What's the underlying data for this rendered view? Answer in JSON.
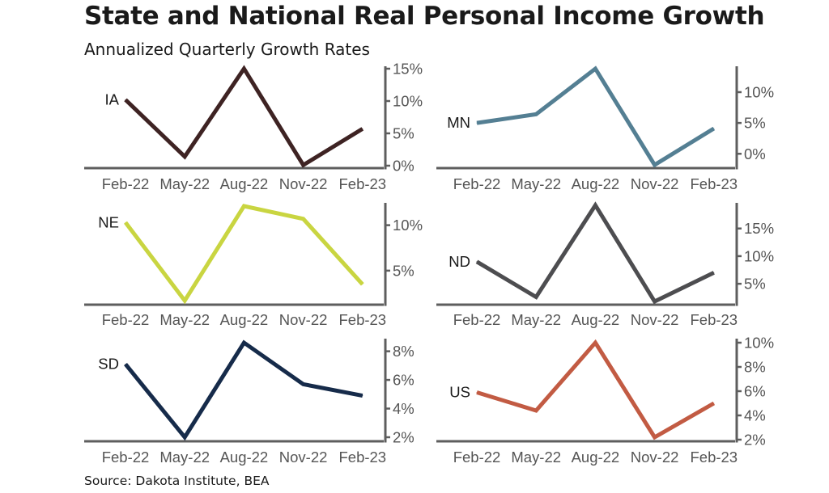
{
  "title": "State and National Real Personal Income Growth",
  "subtitle": "Annualized Quarterly Growth Rates",
  "source": "Source: Dakota Institute, BEA",
  "chart_data": [
    {
      "type": "line",
      "label": "IA",
      "color": "#3e2323",
      "x": [
        "Feb-22",
        "May-22",
        "Aug-22",
        "Nov-22",
        "Feb-23"
      ],
      "values": [
        10.2,
        1.4,
        15.0,
        0.1,
        5.7
      ],
      "yticks": [
        0,
        5,
        10,
        15
      ],
      "tick_labels": [
        "0%",
        "5%",
        "10%",
        "15%"
      ],
      "ylim": [
        0,
        15
      ]
    },
    {
      "type": "line",
      "label": "MN",
      "color": "#547f93",
      "x": [
        "Feb-22",
        "May-22",
        "Aug-22",
        "Nov-22",
        "Feb-23"
      ],
      "values": [
        5.0,
        6.4,
        13.8,
        -1.8,
        4.1
      ],
      "yticks": [
        0,
        5,
        10
      ],
      "tick_labels": [
        "0%",
        "5%",
        "10%"
      ],
      "ylim": [
        -1.8,
        13.8
      ]
    },
    {
      "type": "line",
      "label": "NE",
      "color": "#c9d541",
      "x": [
        "Feb-22",
        "May-22",
        "Aug-22",
        "Nov-22",
        "Feb-23"
      ],
      "values": [
        10.3,
        1.7,
        12.1,
        10.7,
        3.5
      ],
      "yticks": [
        5,
        10
      ],
      "tick_labels": [
        "5%",
        "10%"
      ],
      "ylim": [
        1.7,
        12.1
      ]
    },
    {
      "type": "line",
      "label": "ND",
      "color": "#4d4d50",
      "x": [
        "Feb-22",
        "May-22",
        "Aug-22",
        "Nov-22",
        "Feb-23"
      ],
      "values": [
        9.0,
        2.6,
        19.2,
        1.8,
        7.0
      ],
      "yticks": [
        5,
        10,
        15
      ],
      "tick_labels": [
        "5%",
        "10%",
        "15%"
      ],
      "ylim": [
        1.8,
        19.2
      ]
    },
    {
      "type": "line",
      "label": "SD",
      "color": "#162b4a",
      "x": [
        "Feb-22",
        "May-22",
        "Aug-22",
        "Nov-22",
        "Feb-23"
      ],
      "values": [
        7.1,
        2.0,
        8.6,
        5.7,
        4.9
      ],
      "yticks": [
        2,
        4,
        6,
        8
      ],
      "tick_labels": [
        "2%",
        "4%",
        "6%",
        "8%"
      ],
      "ylim": [
        2.0,
        8.6
      ]
    },
    {
      "type": "line",
      "label": "US",
      "color": "#c25b43",
      "x": [
        "Feb-22",
        "May-22",
        "Aug-22",
        "Nov-22",
        "Feb-23"
      ],
      "values": [
        5.9,
        4.4,
        10.0,
        2.2,
        5.0
      ],
      "yticks": [
        2,
        4,
        6,
        8,
        10
      ],
      "tick_labels": [
        "2%",
        "4%",
        "6%",
        "8%",
        "10%"
      ],
      "ylim": [
        2.2,
        10.0
      ]
    }
  ]
}
